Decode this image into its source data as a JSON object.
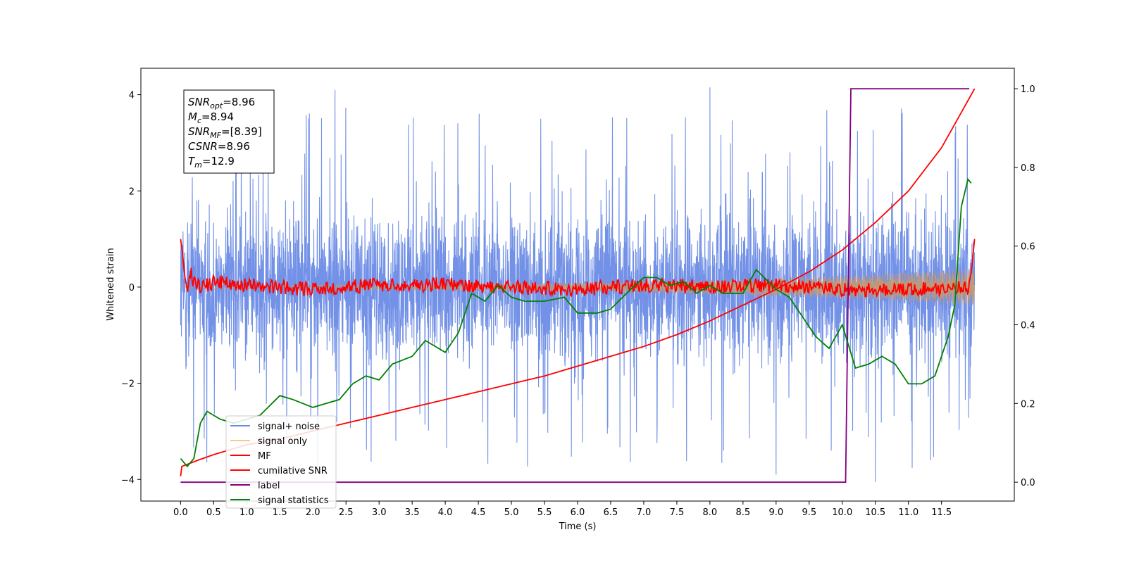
{
  "chart_data": {
    "type": "line",
    "xlabel": "Time (s)",
    "ylabel": "Whitened strain",
    "ylabel_right": "",
    "xlim": [
      -0.6,
      12.6
    ],
    "ylim": [
      -4.45,
      4.55
    ],
    "ylim_right": [
      -0.048,
      1.052
    ],
    "x_ticks": [
      "0.0",
      "0.5",
      "1.0",
      "1.5",
      "2.0",
      "2.5",
      "3.0",
      "3.5",
      "4.0",
      "4.5",
      "5.0",
      "5.5",
      "6.0",
      "6.5",
      "7.0",
      "7.5",
      "8.0",
      "8.5",
      "9.0",
      "9.5",
      "10.0",
      "10.5",
      "11.0",
      "11.5"
    ],
    "y_ticks": [
      "−4",
      "−2",
      "0",
      "2",
      "4"
    ],
    "y_ticks_right": [
      "0.0",
      "0.2",
      "0.4",
      "0.6",
      "0.8",
      "1.0"
    ],
    "grid": false,
    "legend_placement": "lower left",
    "series": [
      {
        "name": "signal+ noise",
        "color": "#6a8be6",
        "axis": "left",
        "description_values": {
          "x_range": [
            0,
            12
          ],
          "amplitude_typical": 1.7,
          "peak_max": 4.15,
          "peak_min": -4.05
        }
      },
      {
        "name": "signal only",
        "color": "#f9c98a",
        "axis": "left",
        "description_values": {
          "x_range": [
            0,
            12
          ],
          "envelope_start": 0.05,
          "envelope_end": 0.38
        }
      },
      {
        "name": "MF",
        "color": "#ff0000",
        "axis": "left",
        "x": [
          0.0,
          0.03,
          0.06,
          0.1,
          0.15,
          0.2,
          0.3,
          0.5,
          1.0,
          2.0,
          3.0,
          4.0,
          5.0,
          6.0,
          7.0,
          8.0,
          9.0,
          10.0,
          11.0,
          11.9,
          11.95,
          12.0
        ],
        "y": [
          1.0,
          0.7,
          0.25,
          -0.05,
          0.3,
          0.1,
          0.0,
          0.1,
          0.05,
          -0.05,
          0.05,
          0.05,
          0.0,
          -0.05,
          0.05,
          0.0,
          0.05,
          -0.05,
          -0.05,
          0.0,
          0.3,
          1.0
        ]
      },
      {
        "name": "cumilative SNR",
        "color": "#ff0000",
        "axis": "right",
        "x": [
          0.0,
          0.02,
          0.25,
          0.5,
          1.0,
          1.5,
          2.0,
          2.5,
          3.0,
          3.5,
          4.0,
          4.5,
          5.0,
          5.5,
          6.0,
          6.5,
          7.0,
          7.5,
          8.0,
          8.5,
          9.0,
          9.5,
          10.0,
          10.5,
          11.0,
          11.5,
          12.0
        ],
        "y": [
          0.015,
          0.04,
          0.055,
          0.07,
          0.095,
          0.11,
          0.13,
          0.15,
          0.17,
          0.19,
          0.21,
          0.23,
          0.25,
          0.27,
          0.295,
          0.32,
          0.345,
          0.375,
          0.41,
          0.45,
          0.49,
          0.535,
          0.59,
          0.66,
          0.74,
          0.85,
          1.0
        ]
      },
      {
        "name": "label",
        "color": "#800080",
        "axis": "right",
        "x": [
          0.0,
          10.05,
          10.13,
          11.92
        ],
        "y": [
          0.0,
          0.0,
          1.0,
          1.0
        ]
      },
      {
        "name": "signal statistics",
        "color": "#008000",
        "axis": "right",
        "x": [
          0.0,
          0.1,
          0.2,
          0.3,
          0.4,
          0.5,
          0.6,
          0.8,
          1.0,
          1.2,
          1.5,
          1.7,
          2.0,
          2.2,
          2.4,
          2.6,
          2.8,
          3.0,
          3.2,
          3.5,
          3.7,
          4.0,
          4.2,
          4.4,
          4.6,
          4.8,
          5.0,
          5.2,
          5.5,
          5.8,
          6.0,
          6.3,
          6.5,
          6.8,
          7.0,
          7.2,
          7.4,
          7.6,
          7.8,
          8.0,
          8.2,
          8.5,
          8.7,
          9.0,
          9.2,
          9.4,
          9.6,
          9.8,
          10.0,
          10.2,
          10.4,
          10.6,
          10.8,
          11.0,
          11.2,
          11.4,
          11.6,
          11.7,
          11.8,
          11.9,
          11.95
        ],
        "y": [
          0.06,
          0.04,
          0.06,
          0.15,
          0.18,
          0.17,
          0.16,
          0.15,
          0.16,
          0.17,
          0.22,
          0.21,
          0.19,
          0.2,
          0.21,
          0.25,
          0.27,
          0.26,
          0.3,
          0.32,
          0.36,
          0.33,
          0.38,
          0.48,
          0.46,
          0.5,
          0.47,
          0.46,
          0.46,
          0.47,
          0.43,
          0.43,
          0.44,
          0.49,
          0.52,
          0.52,
          0.5,
          0.51,
          0.48,
          0.5,
          0.48,
          0.48,
          0.54,
          0.49,
          0.47,
          0.42,
          0.37,
          0.34,
          0.4,
          0.29,
          0.3,
          0.32,
          0.3,
          0.25,
          0.25,
          0.27,
          0.37,
          0.45,
          0.7,
          0.77,
          0.76
        ]
      }
    ],
    "annotations": [
      {
        "label_base": "SNR",
        "label_sub": "opt",
        "value": "=8.96"
      },
      {
        "label_base": "M",
        "label_sub": "c",
        "value": "=8.94"
      },
      {
        "label_base": "SNR",
        "label_sub": "MF",
        "value": "=[8.39]"
      },
      {
        "label_base": "CSNR",
        "label_sub": "",
        "value": "=8.96"
      },
      {
        "label_base": "T",
        "label_sub": "m",
        "value": "=12.9"
      }
    ]
  }
}
